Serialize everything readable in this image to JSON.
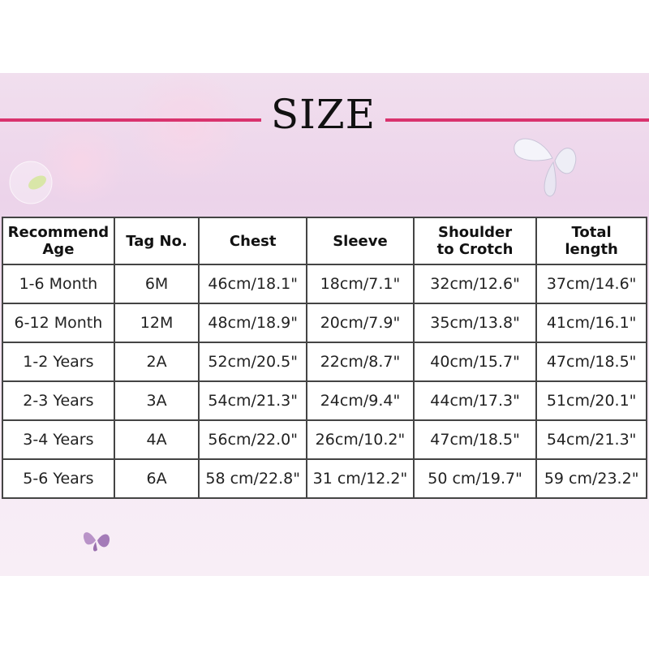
{
  "title": "SIZE",
  "colors": {
    "accent_line": "#d9336e",
    "background": "#ecd3ea"
  },
  "table": {
    "headers": [
      {
        "line1": "Recommend",
        "line2": "Age"
      },
      {
        "line1": "Tag No.",
        "line2": ""
      },
      {
        "line1": "Chest",
        "line2": ""
      },
      {
        "line1": "Sleeve",
        "line2": ""
      },
      {
        "line1": "Shoulder",
        "line2": "to Crotch"
      },
      {
        "line1": "Total",
        "line2": "length"
      }
    ],
    "rows": [
      [
        "1-6 Month",
        "6M",
        "46cm/18.1\"",
        "18cm/7.1\"",
        "32cm/12.6\"",
        "37cm/14.6\""
      ],
      [
        "6-12 Month",
        "12M",
        "48cm/18.9\"",
        "20cm/7.9\"",
        "35cm/13.8\"",
        "41cm/16.1\""
      ],
      [
        "1-2 Years",
        "2A",
        "52cm/20.5\"",
        "22cm/8.7\"",
        "40cm/15.7\"",
        "47cm/18.5\""
      ],
      [
        "2-3 Years",
        "3A",
        "54cm/21.3\"",
        "24cm/9.4\"",
        "44cm/17.3\"",
        "51cm/20.1\""
      ],
      [
        "3-4 Years",
        "4A",
        "56cm/22.0\"",
        "26cm/10.2\"",
        "47cm/18.5\"",
        "54cm/21.3\""
      ],
      [
        "5-6 Years",
        "6A",
        "58 cm/22.8\"",
        "31 cm/12.2\"",
        "50 cm/19.7\"",
        "59 cm/23.2\""
      ]
    ]
  },
  "decorations": [
    "butterfly-icon",
    "butterfly-icon",
    "bubble-leaf-icon"
  ]
}
